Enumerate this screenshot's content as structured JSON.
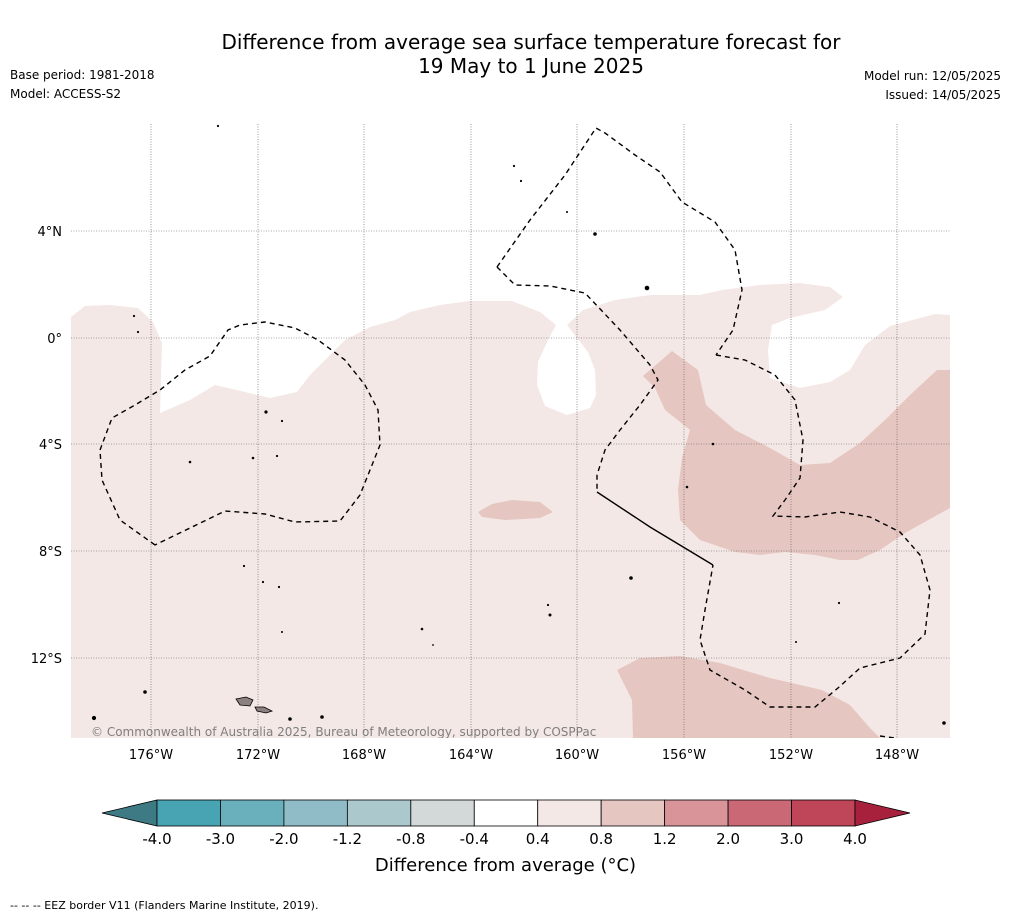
{
  "header": {
    "title_line1": "Difference from average sea surface temperature forecast for",
    "title_line2": "19 May to 1 June 2025",
    "base_period": "Base period: 1981-2018",
    "model": "Model: ACCESS-S2",
    "model_run": "Model run: 12/05/2025",
    "issued": "Issued: 14/05/2025"
  },
  "map": {
    "lon_labels": [
      "176°W",
      "172°W",
      "168°W",
      "164°W",
      "160°W",
      "156°W",
      "152°W",
      "148°W"
    ],
    "lat_labels": [
      "4°N",
      "0°",
      "4°S",
      "8°S",
      "12°S"
    ],
    "copyright": "© Commonwealth of Australia 2025, Bureau of Meteorology, supported by COSPPac"
  },
  "colorbar": {
    "ticks": [
      "-4.0",
      "-3.0",
      "-2.0",
      "-1.2",
      "-0.8",
      "-0.4",
      "0.4",
      "0.8",
      "1.2",
      "2.0",
      "3.0",
      "4.0"
    ],
    "colors": [
      "#48a3b3",
      "#6aafbc",
      "#8fbcc6",
      "#abc8cd",
      "#d3d8d8",
      "#ffffff",
      "#f4e8e6",
      "#e6c6c1",
      "#d9949a",
      "#ca6876",
      "#bf4659"
    ],
    "under_color": "#3d7a83",
    "over_color": "#a7213c",
    "title": "Difference from average (°C)"
  },
  "footnote": "--  --  -- EEZ border V11 (Flanders Marine Institute, 2019)."
}
